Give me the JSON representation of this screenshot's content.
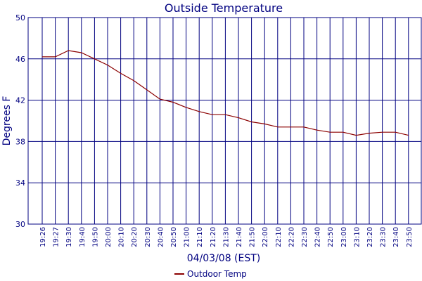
{
  "chart_data": {
    "type": "line",
    "title": "Outside Temperature",
    "xlabel": "04/03/08 (EST)",
    "ylabel": "Degrees F",
    "ylim": [
      30,
      50
    ],
    "yticks": [
      "30",
      "34",
      "38",
      "42",
      "46",
      "50"
    ],
    "grid": true,
    "legend_position": "bottom",
    "categories": [
      "19:26",
      "19:27",
      "19:30",
      "19:40",
      "19:50",
      "20:00",
      "20:10",
      "20:20",
      "20:30",
      "20:40",
      "20:50",
      "21:00",
      "21:10",
      "21:20",
      "21:30",
      "21:40",
      "21:50",
      "22:00",
      "22:10",
      "22:20",
      "22:30",
      "22:40",
      "22:50",
      "23:00",
      "23:10",
      "23:20",
      "23:30",
      "23:40",
      "23:50"
    ],
    "series": [
      {
        "name": "Outdoor Temp",
        "color": "#8b0000",
        "values": [
          46.2,
          46.2,
          46.8,
          46.6,
          46.0,
          45.4,
          44.6,
          43.9,
          43.0,
          42.1,
          41.8,
          41.3,
          40.9,
          40.6,
          40.6,
          40.3,
          39.9,
          39.7,
          39.4,
          39.4,
          39.4,
          39.1,
          38.9,
          38.9,
          38.6,
          38.8,
          38.9,
          38.9,
          38.6
        ]
      }
    ],
    "colors": {
      "grid": "#000080",
      "text": "#000080",
      "background": "#ffffff"
    }
  }
}
